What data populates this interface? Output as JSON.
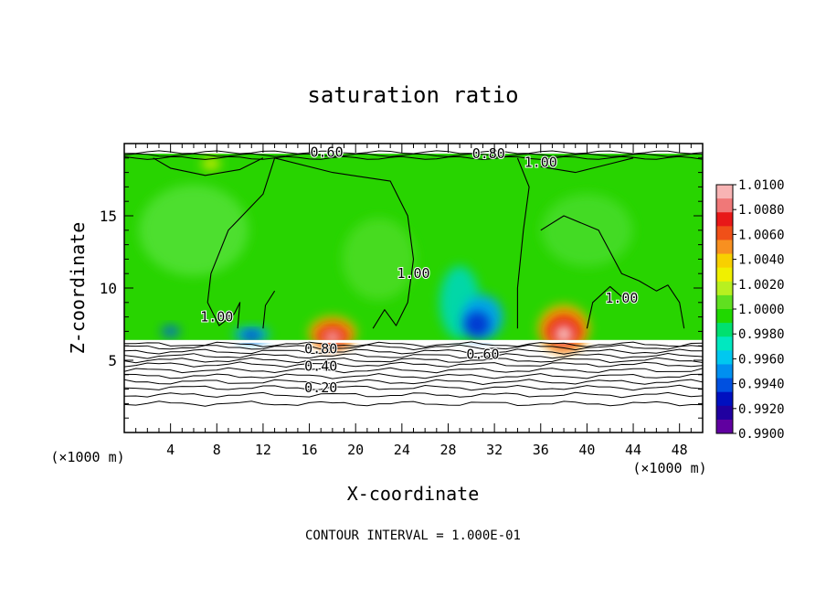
{
  "chart_data": {
    "type": "heatmap",
    "title": "saturation ratio",
    "xlabel": "X-coordinate",
    "ylabel": "Z-coordinate",
    "x_unit": "(×1000 m)",
    "y_unit": "(×1000 m)",
    "xlim": [
      0,
      50
    ],
    "ylim": [
      0,
      20
    ],
    "x_ticks": [
      "4",
      "8",
      "12",
      "16",
      "20",
      "24",
      "28",
      "32",
      "36",
      "40",
      "44",
      "48"
    ],
    "y_ticks": [
      "5",
      "10",
      "15"
    ],
    "footer": "CONTOUR INTERVAL = 1.000E-01",
    "colorbar": {
      "labels": [
        "1.0100",
        "1.0080",
        "1.0060",
        "1.0040",
        "1.0020",
        "1.0000",
        "0.9980",
        "0.9960",
        "0.9940",
        "0.9920",
        "0.9900"
      ],
      "colors": [
        "#f8b4b4",
        "#f07878",
        "#e81818",
        "#f05018",
        "#f89020",
        "#f8d000",
        "#f0f000",
        "#b8f020",
        "#60e020",
        "#20d800",
        "#00e070",
        "#00e8c0",
        "#00c8f0",
        "#0090f0",
        "#0050e0",
        "#0010c0",
        "#2000a0",
        "#6000a0"
      ]
    },
    "contour_labels": [
      {
        "text": "0.60",
        "x": 17.5,
        "z": 19.4
      },
      {
        "text": "0.80",
        "x": 31.5,
        "z": 19.3
      },
      {
        "text": "1.00",
        "x": 36.0,
        "z": 18.7
      },
      {
        "text": "1.00",
        "x": 25.0,
        "z": 11.0
      },
      {
        "text": "1.00",
        "x": 8.0,
        "z": 8.0
      },
      {
        "text": "1.00",
        "x": 43.0,
        "z": 9.3
      },
      {
        "text": "0.80",
        "x": 17.0,
        "z": 5.8
      },
      {
        "text": "0.60",
        "x": 31.0,
        "z": 5.4
      },
      {
        "text": "0.40",
        "x": 17.0,
        "z": 4.6
      },
      {
        "text": "0.20",
        "x": 17.0,
        "z": 3.1
      }
    ],
    "features": [
      {
        "kind": "max",
        "x": 18.0,
        "z": 7.0,
        "level": 1.01
      },
      {
        "kind": "max",
        "x": 38.0,
        "z": 7.5,
        "level": 1.01
      },
      {
        "kind": "max",
        "x": 7.5,
        "z": 18.5,
        "level": 1.004
      },
      {
        "kind": "min",
        "x": 30.0,
        "z": 8.0,
        "level": 0.993
      },
      {
        "kind": "min",
        "x": 11.0,
        "z": 7.0,
        "level": 0.994
      }
    ]
  }
}
